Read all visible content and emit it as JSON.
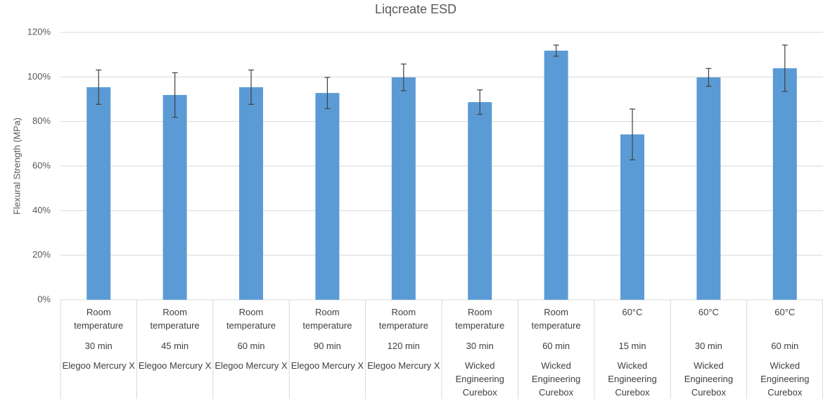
{
  "chart_data": {
    "type": "bar",
    "title": "Liqcreate ESD",
    "y_label": "Flexural Strength (MPa)",
    "categories": [
      [
        "Room temperature",
        "30 min",
        "Elegoo Mercury X"
      ],
      [
        "Room temperature",
        "45 min",
        "Elegoo Mercury X"
      ],
      [
        "Room temperature",
        "60 min",
        "Elegoo Mercury X"
      ],
      [
        "Room temperature",
        "90 min",
        "Elegoo Mercury X"
      ],
      [
        "Room temperature",
        "120 min",
        "Elegoo Mercury X"
      ],
      [
        "Room temperature",
        "30 min",
        "Wicked Engineering Curebox"
      ],
      [
        "Room temperature",
        "60 min",
        "Wicked Engineering Curebox"
      ],
      [
        "60°C",
        "15 min",
        "Wicked Engineering Curebox"
      ],
      [
        "60°C",
        "30 min",
        "Wicked Engineering Curebox"
      ],
      [
        "60°C",
        "60 min",
        "Wicked Engineering Curebox"
      ]
    ],
    "values": [
      95.4,
      91.9,
      95.4,
      92.8,
      99.8,
      88.7,
      111.8,
      74.2,
      99.8,
      103.9
    ],
    "errors": [
      7.7,
      10,
      7.7,
      7,
      6,
      5.5,
      2.5,
      11.4,
      4,
      10.4
    ],
    "color": "#5b9bd5",
    "ylim": [
      0,
      120
    ],
    "yticks": [
      {
        "value": 0,
        "label": "0%"
      },
      {
        "value": 20,
        "label": "20%"
      },
      {
        "value": 40,
        "label": "40%"
      },
      {
        "value": 60,
        "label": "60%"
      },
      {
        "value": 80,
        "label": "80%"
      },
      {
        "value": 100,
        "label": "100%"
      },
      {
        "value": 120,
        "label": "120%"
      }
    ],
    "grid": true
  }
}
